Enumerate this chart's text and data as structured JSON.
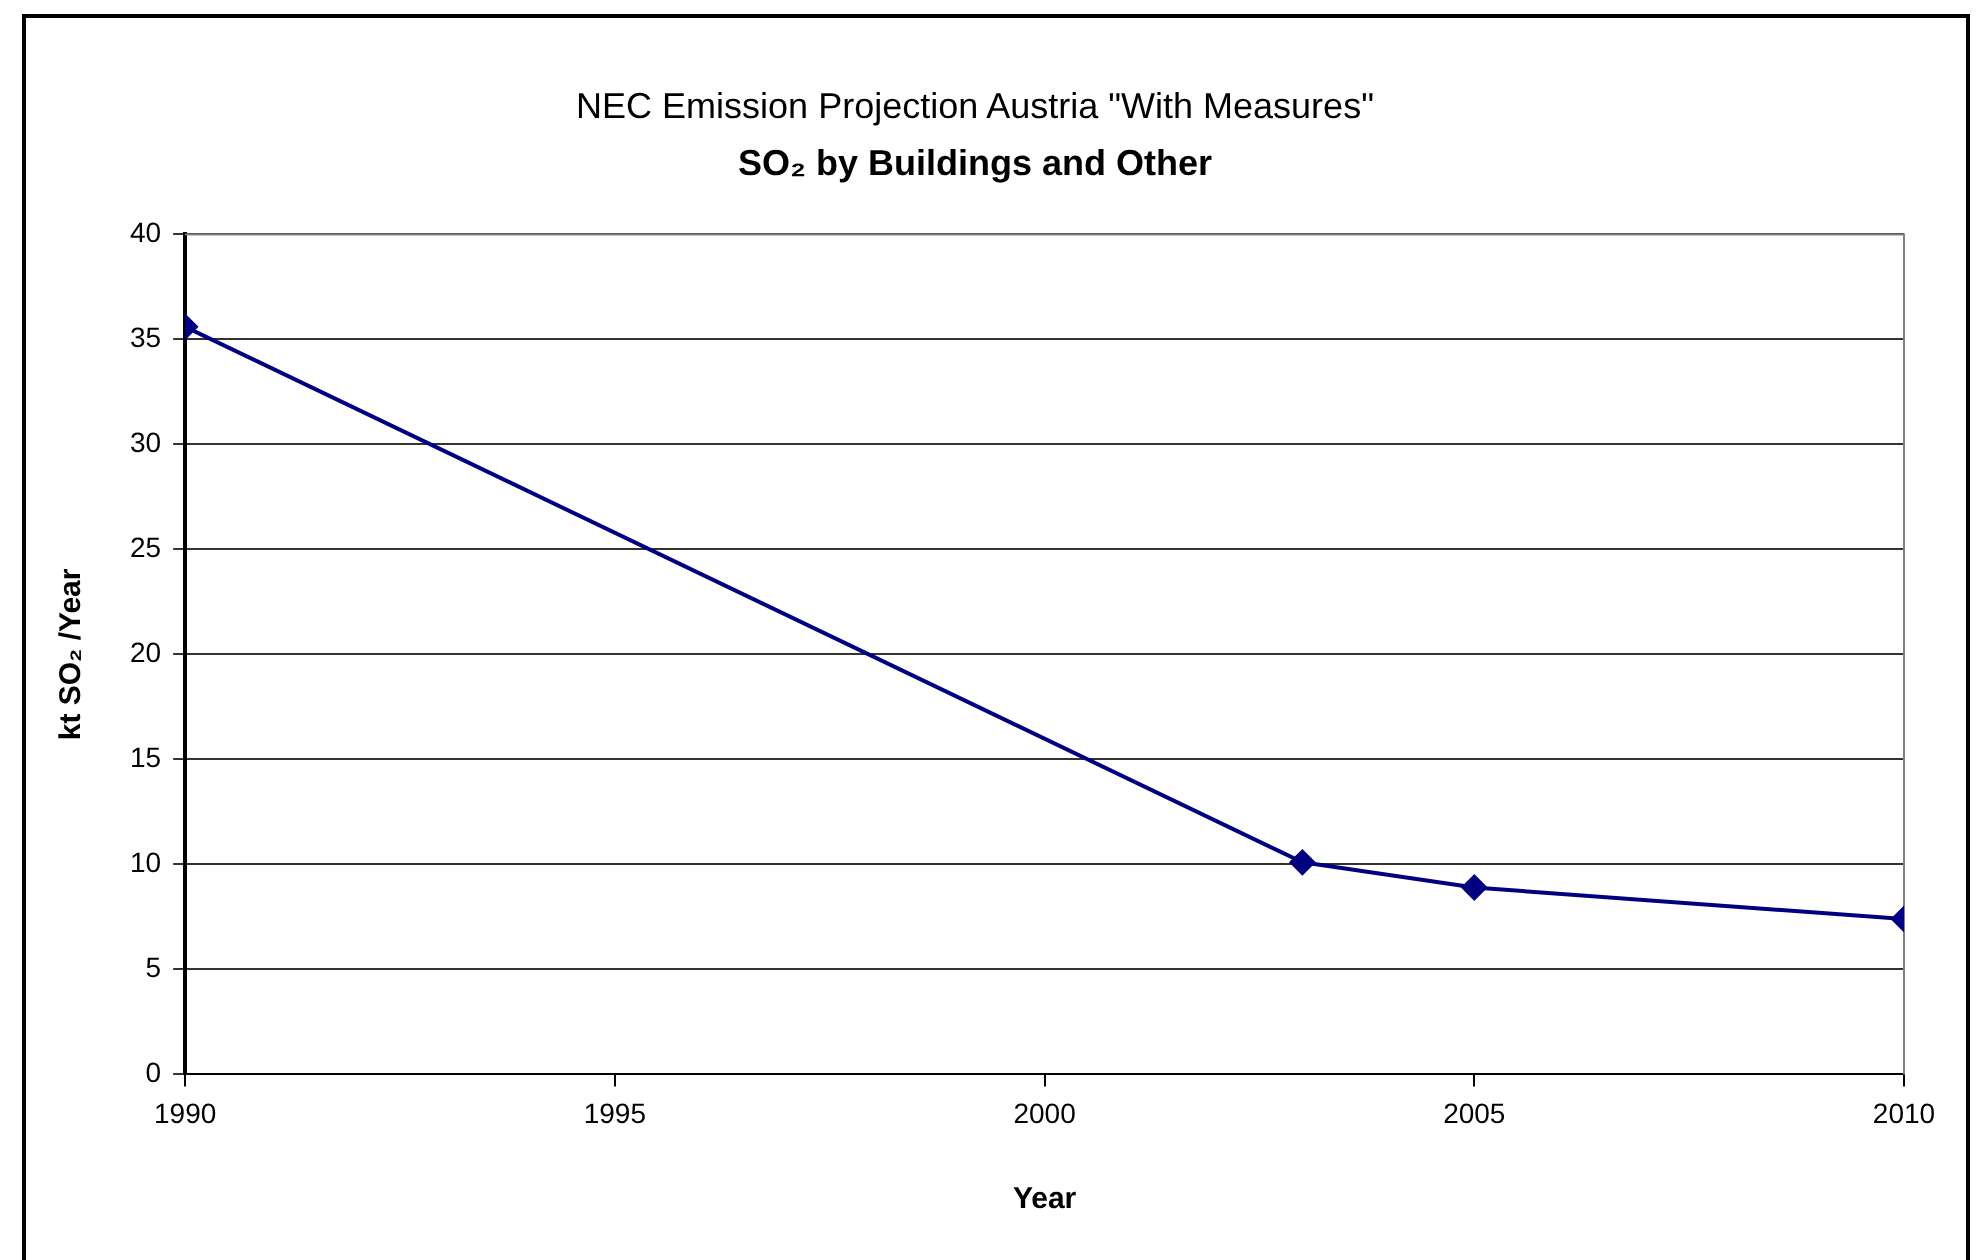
{
  "chart_data": {
    "type": "line",
    "title": "NEC Emission Projection Austria \"With Measures\"",
    "subtitle": "SO₂ by Buildings and Other",
    "xlabel": "Year",
    "ylabel": "kt SO₂ /Year",
    "x": [
      1990,
      2003,
      2005,
      2010
    ],
    "values": [
      35.6,
      10.1,
      8.9,
      7.4
    ],
    "color": "#000080",
    "xlim": [
      1990,
      2010
    ],
    "xticks": [
      1990,
      1995,
      2000,
      2005,
      2010
    ],
    "ylim": [
      0,
      40
    ],
    "yticks": [
      0,
      5,
      10,
      15,
      20,
      25,
      30,
      35,
      40
    ],
    "grid": "y",
    "legend": false,
    "marker": "diamond",
    "line_style": "solid"
  }
}
